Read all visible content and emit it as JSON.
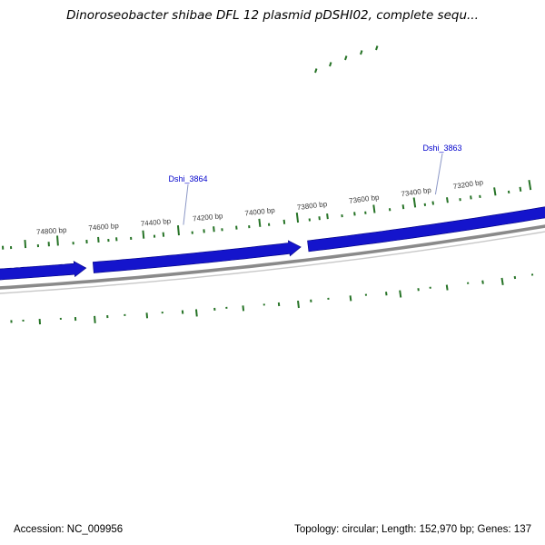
{
  "title": "Dinoroseobacter shibae DFL 12 plasmid pDSHI02, complete sequ...",
  "map": {
    "ruler_labels": [
      "74800 bp",
      "74600 bp",
      "74400 bp",
      "74200 bp",
      "74000 bp",
      "73800 bp",
      "73600 bp",
      "73400 bp",
      "73200 bp"
    ],
    "genes": [
      {
        "label": "Dshi_3864"
      },
      {
        "label": "Dshi_3863"
      }
    ]
  },
  "status_bar": {
    "accession": "Accession: NC_009956",
    "summary": "Topology: circular; Length: 152,970 bp; Genes: 137"
  },
  "colors": {
    "gene_fill": "#1414cc",
    "gene_stroke": "#000080",
    "tick_green": "#267326",
    "backbone_gray": "#8a8a8a",
    "backbone_light": "#c8c8c8",
    "ruler_text": "#3a3a3a",
    "gene_label_blue": "#0000cc",
    "leader_line": "#8b97c6"
  }
}
